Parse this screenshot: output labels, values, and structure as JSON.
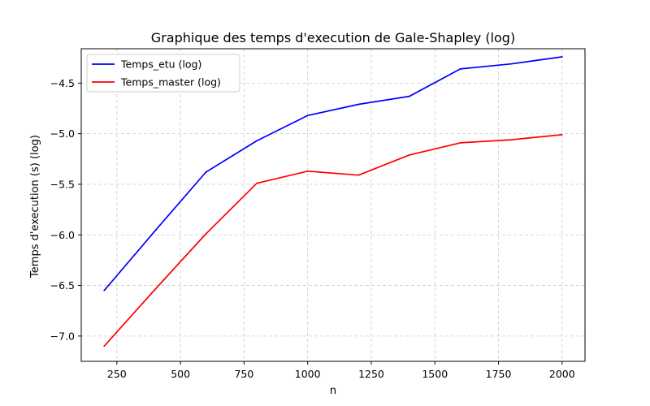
{
  "chart_data": {
    "type": "line",
    "title": "Graphique des temps d'execution de Gale-Shapley (log)",
    "xlabel": "n",
    "ylabel": "Temps d'execution (s) (log)",
    "x": [
      200,
      400,
      600,
      800,
      1000,
      1200,
      1400,
      1600,
      1800,
      2000
    ],
    "series": [
      {
        "name": "Temps_etu (log)",
        "color": "#0000ff",
        "values": [
          -6.55,
          -5.96,
          -5.38,
          -5.07,
          -4.82,
          -4.71,
          -4.63,
          -4.36,
          -4.31,
          -4.24
        ]
      },
      {
        "name": "Temps_master (log)",
        "color": "#ff0000",
        "values": [
          -7.1,
          -6.54,
          -5.99,
          -5.49,
          -5.37,
          -5.41,
          -5.21,
          -5.09,
          -5.06,
          -5.01
        ]
      }
    ],
    "xlim": [
      110,
      2090
    ],
    "ylim": [
      -7.25,
      -4.16
    ],
    "xticks": [
      250,
      500,
      750,
      1000,
      1250,
      1500,
      1750,
      2000
    ],
    "xtick_labels": [
      "250",
      "500",
      "750",
      "1000",
      "1250",
      "1500",
      "1750",
      "2000"
    ],
    "yticks": [
      -7.0,
      -6.5,
      -6.0,
      -5.5,
      -5.0,
      -4.5
    ],
    "ytick_labels": [
      "−7.0",
      "−6.5",
      "−6.0",
      "−5.5",
      "−5.0",
      "−4.5"
    ],
    "grid": true,
    "grid_style": "dashed",
    "legend_position": "upper-left"
  }
}
